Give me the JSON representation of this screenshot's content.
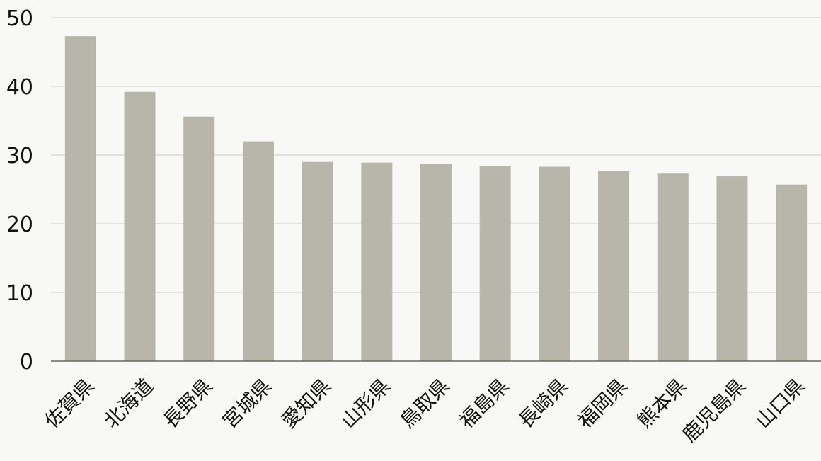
{
  "chart_data": {
    "type": "bar",
    "title": "",
    "xlabel": "",
    "ylabel": "",
    "categories": [
      "佐賀県",
      "北海道",
      "長野県",
      "宮城県",
      "愛知県",
      "山形県",
      "鳥取県",
      "福島県",
      "長崎県",
      "福岡県",
      "熊本県",
      "鹿児島県",
      "山口県"
    ],
    "values": [
      47.3,
      39.2,
      35.6,
      32.0,
      29.0,
      28.9,
      28.7,
      28.4,
      28.3,
      27.7,
      27.3,
      26.9,
      25.7
    ],
    "ylim": [
      0,
      50
    ],
    "yticks": [
      "0",
      "10",
      "20",
      "30",
      "40",
      "50"
    ],
    "grid": true,
    "legend": "none"
  },
  "colors": {
    "bar": "#b8b5aa",
    "grid": "#cccccc",
    "axis": "#666666",
    "background": "#f8f8f6"
  }
}
